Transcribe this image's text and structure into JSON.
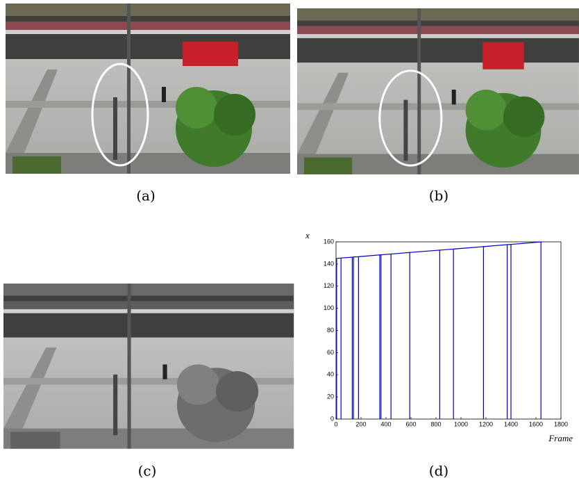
{
  "figure": {
    "captions": [
      "(a)",
      "(b)",
      "(c)",
      "(d)"
    ]
  },
  "chart_data": {
    "type": "line",
    "xlabel": "Frame",
    "ylabel": "x",
    "xlim": [
      0,
      1800
    ],
    "ylim": [
      0,
      160
    ],
    "xticks": [
      0,
      200,
      400,
      600,
      800,
      1000,
      1200,
      1400,
      1600,
      1800
    ],
    "yticks": [
      0,
      20,
      40,
      60,
      80,
      100,
      120,
      140,
      160
    ],
    "series": [
      {
        "color": "#0000c8",
        "x": [
          5,
          5,
          40,
          40,
          40,
          130,
          130,
          130,
          140,
          140,
          140,
          180,
          180,
          180,
          350,
          350,
          350,
          360,
          360,
          360,
          440,
          440,
          440,
          590,
          590,
          590,
          830,
          830,
          830,
          940,
          940,
          940,
          1180,
          1180,
          1180,
          1370,
          1370,
          1370,
          1400,
          1400,
          1400,
          1640,
          1640,
          1640,
          1650
        ],
        "values": [
          0,
          145,
          145.4,
          0,
          145.4,
          146.2,
          0,
          146.2,
          146.3,
          0,
          146.3,
          146.6,
          0,
          146.6,
          148.2,
          0,
          148.2,
          148.3,
          0,
          148.3,
          149,
          0,
          149,
          150.4,
          0,
          150.4,
          152.5,
          0,
          152.5,
          153.5,
          0,
          153.5,
          155.7,
          0,
          155.7,
          157.5,
          0,
          157.5,
          157.7,
          0,
          157.7,
          159.9,
          0,
          159.9,
          160
        ]
      }
    ]
  }
}
